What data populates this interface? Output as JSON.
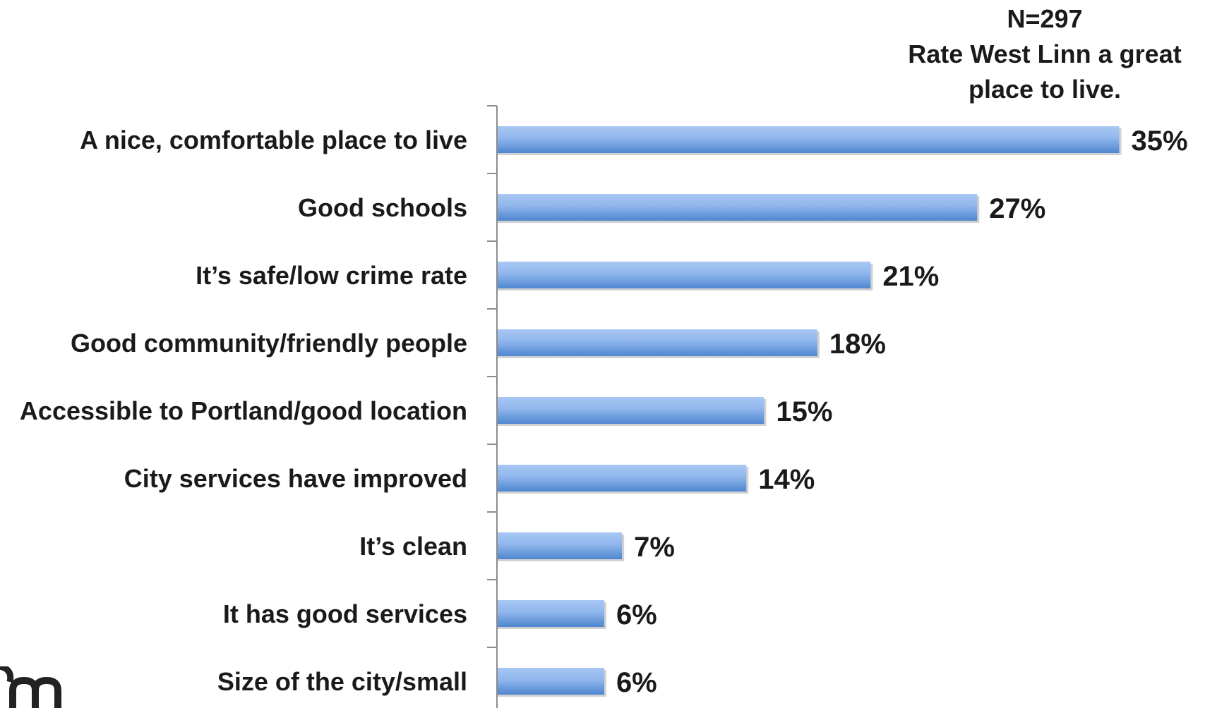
{
  "header": {
    "sample_size": "N=297",
    "caption_line1": "Rate West Linn a great",
    "caption_line2": "place to live."
  },
  "colors": {
    "bar_top": "#a9c8f4",
    "bar_bottom": "#4f86d0",
    "axis": "#8c8c8c",
    "text": "#1a1a1a"
  },
  "chart_data": {
    "type": "bar",
    "orientation": "horizontal",
    "title": "",
    "xlabel": "",
    "ylabel": "",
    "xlim": [
      0,
      38
    ],
    "grid": false,
    "categories": [
      "A nice, comfortable place to live",
      "Good schools",
      "It’s safe/low crime rate",
      "Good community/friendly people",
      "Accessible to Portland/good location",
      "City services have improved",
      "It’s clean",
      "It has good services",
      "Size of the city/small"
    ],
    "values": [
      35,
      27,
      21,
      18,
      15,
      14,
      7,
      6,
      6
    ],
    "value_labels": [
      "35%",
      "27%",
      "21%",
      "18%",
      "15%",
      "14%",
      "7%",
      "6%",
      "6%"
    ]
  }
}
